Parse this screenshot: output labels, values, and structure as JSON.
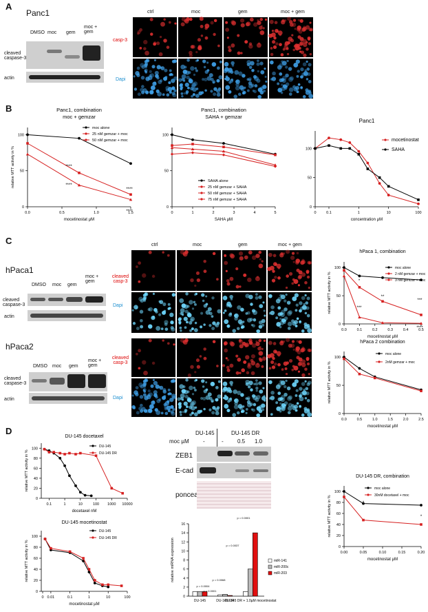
{
  "A": {
    "label": "A",
    "cell_line": "Panc1",
    "lanes": [
      "DMSO",
      "moc",
      "gem",
      "moc + gem"
    ],
    "row_labels": [
      "cleaved caspase-3",
      "actin"
    ],
    "image_cols": [
      "ctrl",
      "moc",
      "gem",
      "moc + gem"
    ],
    "image_rows": [
      "casp-3",
      "Dapi"
    ],
    "casp_color": "#d81c1c",
    "dapi_color": "#1c8fd0"
  },
  "B": {
    "label": "B",
    "charts": [
      {
        "type": "line",
        "title": "Panc1,  combination",
        "subtitle": "moc + gemzar",
        "xlabel": "mocetinostat µM",
        "ylabel": "relative MTT activity in %",
        "x": [
          0,
          0.75,
          1.5
        ],
        "xticks": [
          "0.0",
          "0.5",
          "1.0",
          "1.5"
        ],
        "yticks": [
          0,
          50,
          100
        ],
        "ylim": [
          0,
          110
        ],
        "series": [
          {
            "name": "moc  alone",
            "color": "#000",
            "values": [
              100,
              95,
              60
            ]
          },
          {
            "name": "25 nM gemzar + moc",
            "color": "#d62020",
            "values": [
              88,
              47,
              17
            ]
          },
          {
            "name": "50 nM gemzar + moc",
            "color": "#d62020",
            "values": [
              73,
              30,
              10
            ]
          }
        ],
        "annotations": [
          "****",
          "****",
          "****",
          "****"
        ]
      },
      {
        "type": "line",
        "title": "Panc1,  combination",
        "subtitle": "SAHA + gemzar",
        "xlabel": "SAHA  µM",
        "ylabel": "",
        "x": [
          0,
          1,
          2.5,
          5
        ],
        "xticks": [
          "0",
          "1",
          "2",
          "3",
          "4",
          "5"
        ],
        "yticks": [
          0,
          50,
          100
        ],
        "ylim": [
          0,
          110
        ],
        "series": [
          {
            "name": "SAHA alone",
            "color": "#000",
            "values": [
              100,
              93,
              88,
              73
            ]
          },
          {
            "name": "25 nM gemzar + SAHA",
            "color": "#d62020",
            "values": [
              85,
              87,
              83,
              72
            ]
          },
          {
            "name": "50 nM gemzar + SAHA",
            "color": "#d62020",
            "values": [
              82,
              80,
              77,
              58
            ]
          },
          {
            "name": "75 nM gemzar + SAHA",
            "color": "#d62020",
            "values": [
              73,
              75,
              72,
              56
            ]
          }
        ]
      },
      {
        "type": "line",
        "title": "Panc1",
        "subtitle": "",
        "xlabel": "concentration µM",
        "ylabel": "",
        "x": [
          0,
          0.1,
          0.25,
          0.5,
          1,
          2,
          5,
          10,
          100
        ],
        "xticks": [
          "0",
          "0.1",
          "1",
          "10",
          "100"
        ],
        "yticks": [
          0,
          50,
          100
        ],
        "ylim": [
          0,
          130
        ],
        "series": [
          {
            "name": "mocetinostat",
            "color": "#d62020",
            "values": [
              100,
              118,
              115,
              110,
              95,
              75,
              40,
              20,
              5
            ]
          },
          {
            "name": "SAHA",
            "color": "#000",
            "values": [
              100,
              105,
              100,
              100,
              90,
              65,
              50,
              35,
              12
            ]
          }
        ]
      }
    ]
  },
  "C": {
    "label": "C",
    "panels": [
      {
        "cell_line": "hPaca1",
        "lanes": [
          "DMSO",
          "moc",
          "gem",
          "moc + gem"
        ],
        "row_labels": [
          "cleaved caspase-3",
          "actin"
        ],
        "image_cols": [
          "ctrl",
          "moc",
          "gem",
          "moc + gem"
        ],
        "image_rows": [
          "cleaved casp-3",
          "Dapi"
        ]
      },
      {
        "cell_line": "hPaca2",
        "lanes": [
          "DMSO",
          "moc",
          "gem",
          "moc + gem"
        ],
        "row_labels": [
          "cleaved caspase-3",
          "actin"
        ],
        "image_cols": [],
        "image_rows": [
          "cleaved casp-3",
          "Dapi"
        ]
      }
    ],
    "charts": [
      {
        "type": "line",
        "title": "hPaca 1,  combination",
        "xlabel": "mocetinostat µM",
        "ylabel": "relative MTT activity in %",
        "x": [
          0,
          0.1,
          0.25,
          0.5
        ],
        "xticks": [
          "0.0",
          "0.1",
          "0.2",
          "0.3",
          "0.4",
          "0.5"
        ],
        "yticks": [
          0,
          50,
          100
        ],
        "ylim": [
          0,
          110
        ],
        "series": [
          {
            "name": "moc  alone",
            "color": "#000",
            "values": [
              100,
              85,
              82,
              78
            ]
          },
          {
            "name": "2 nM gemzar + moc",
            "color": "#d62020",
            "values": [
              95,
              65,
              40,
              16
            ]
          },
          {
            "name": "3 nM gemzar + moc",
            "color": "#d62020",
            "values": [
              85,
              12,
              2,
              1
            ]
          }
        ],
        "annotations": [
          "*",
          "***",
          "**",
          "***",
          "****"
        ]
      },
      {
        "type": "line",
        "title": "hPaca 2  combination",
        "xlabel": "mocetinostat µM",
        "ylabel": "relative MTT activity in %",
        "x": [
          0,
          0.5,
          1,
          2.5
        ],
        "xticks": [
          "0.0",
          "0.5",
          "1.0",
          "1.5",
          "2.0",
          "2.5"
        ],
        "yticks": [
          0,
          50,
          100
        ],
        "ylim": [
          0,
          110
        ],
        "series": [
          {
            "name": "moc alone",
            "color": "#000",
            "values": [
              100,
              80,
              65,
              42
            ]
          },
          {
            "name": "2nM gemzar + moc",
            "color": "#d62020",
            "values": [
              97,
              70,
              63,
              40
            ]
          }
        ]
      }
    ]
  },
  "D": {
    "label": "D",
    "charts": [
      {
        "type": "line",
        "title": "DU-145 docetaxel",
        "xlabel": "docetaxel nM",
        "ylabel": "relative MTT activity in %",
        "x": [
          0.05,
          0.1,
          0.2,
          0.5,
          1,
          2,
          5,
          10,
          20,
          50,
          100,
          1000,
          5000
        ],
        "xticks": [
          "0.1",
          "1",
          "10",
          "100",
          "1000",
          "10000"
        ],
        "yticks": [
          0,
          20,
          40,
          60,
          80,
          100
        ],
        "ylim": [
          0,
          110
        ],
        "series": [
          {
            "name": "DU-145",
            "color": "#000",
            "values": [
              98,
              95,
              90,
              80,
              65,
              45,
              25,
              12,
              6,
              5,
              null,
              null,
              null
            ]
          },
          {
            "name": "DU-145 DR",
            "color": "#d62020",
            "values": [
              98,
              92,
              92,
              90,
              88,
              90,
              88,
              90,
              null,
              null,
              85,
              20,
              10
            ]
          }
        ]
      },
      {
        "type": "line",
        "title": "DU-145 mocetinostat",
        "xlabel": "mocetinostat µM",
        "ylabel": "relative MTT activity in %",
        "x": [
          0.005,
          0.01,
          0.1,
          0.5,
          1,
          2,
          5,
          10,
          50
        ],
        "xticks": [
          "0",
          "0.01",
          "0.1",
          "1",
          "10",
          "100"
        ],
        "yticks": [
          0,
          20,
          40,
          60,
          80,
          100
        ],
        "ylim": [
          0,
          110
        ],
        "series": [
          {
            "name": "DU-145",
            "color": "#000",
            "values": [
              95,
              75,
              70,
              55,
              35,
              15,
              10,
              8,
              null
            ]
          },
          {
            "name": "DU-145 DR",
            "color": "#d62020",
            "values": [
              95,
              78,
              72,
              60,
              40,
              20,
              12,
              12,
              10
            ]
          }
        ]
      },
      {
        "type": "bar",
        "title": "",
        "xlabel": "",
        "ylabel": "relative miRNA expression",
        "categories": [
          "DU-145",
          "DU-145 DR",
          "DU-145 DR + 1.0µM mocetinostat"
        ],
        "yticks": [
          0,
          2,
          4,
          6,
          8,
          10,
          12,
          14,
          16
        ],
        "ylim": [
          0,
          16
        ],
        "series": [
          {
            "name": "miR-141",
            "color": "#ffffff",
            "values": [
              1,
              0.3,
              1.0
            ]
          },
          {
            "name": "miR-200c",
            "color": "#bbbbbb",
            "values": [
              1,
              0.4,
              6.0
            ]
          },
          {
            "name": "miR-203",
            "color": "#e01010",
            "values": [
              1,
              0.15,
              14.0
            ]
          }
        ],
        "pvalues": [
          "p = 0.0004",
          "p < 0.0001",
          "p = 0.0068",
          "p = 0.0037",
          "p = 0.0001"
        ]
      },
      {
        "type": "line",
        "title": "DU-145 DR,  combination",
        "xlabel": "mocetinostat µM",
        "ylabel": "relative MTT activity in %",
        "x": [
          0,
          0.05,
          0.2
        ],
        "xticks": [
          "0.00",
          "0.05",
          "0.10",
          "0.15",
          "0.20"
        ],
        "yticks": [
          0,
          20,
          40,
          60,
          80,
          100
        ],
        "ylim": [
          0,
          110
        ],
        "series": [
          {
            "name": "moc  alone",
            "color": "#000",
            "values": [
              100,
              78,
              75
            ]
          },
          {
            "name": "30nM docetaxel + moc",
            "color": "#d62020",
            "values": [
              90,
              48,
              40
            ]
          }
        ],
        "annotations": [
          "*",
          "*"
        ]
      }
    ],
    "blot": {
      "groups": [
        "DU-145",
        "DU-145 DR"
      ],
      "moc_label": "moc µM",
      "moc_values": [
        "-",
        "-",
        "0.5",
        "1.0"
      ],
      "row_labels": [
        "ZEB1",
        "E-cad",
        "ponceau"
      ]
    }
  }
}
